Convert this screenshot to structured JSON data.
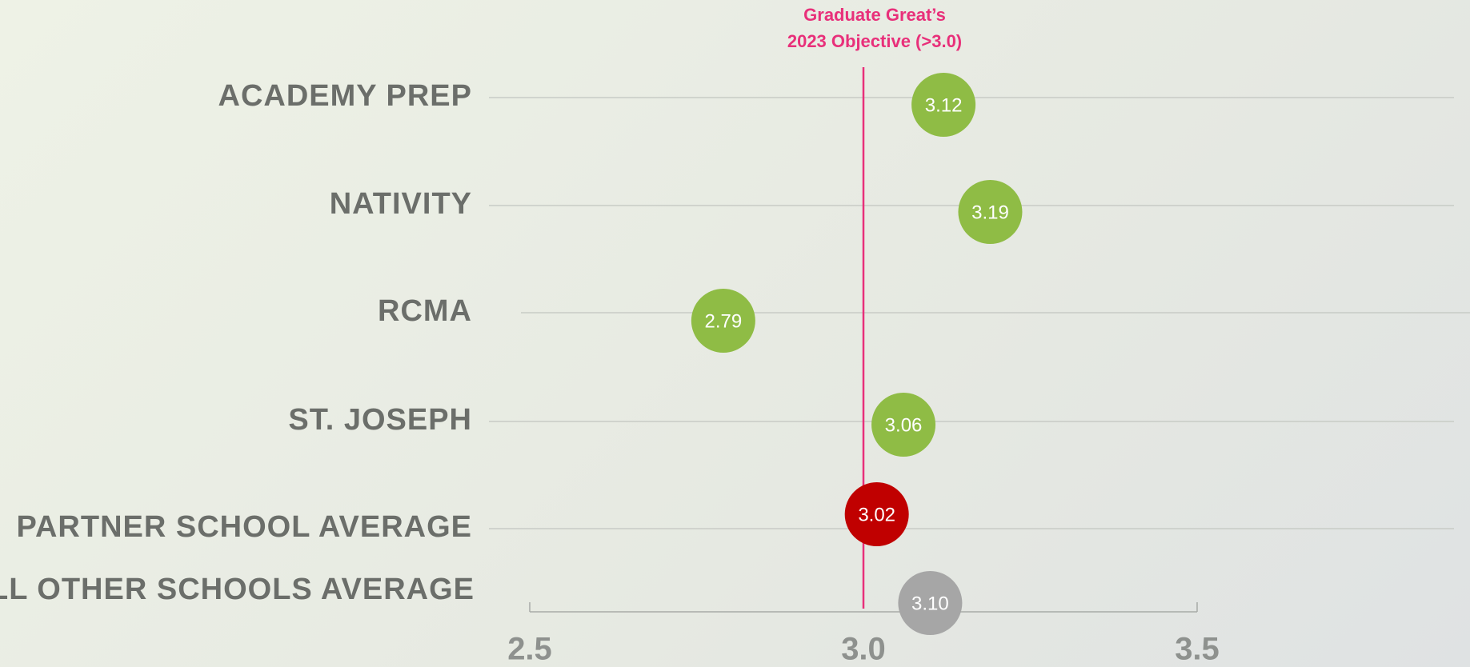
{
  "chart_data": {
    "type": "dot",
    "annotation": [
      "Graduate Great’s",
      "2023 Objective (>3.0)"
    ],
    "target": 3,
    "categories": [
      "ACADEMY PREP",
      "NATIVITY",
      "RCMA",
      "ST. JOSEPH",
      "PARTNER SCHOOL AVERAGE",
      "ALL OTHER SCHOOLS AVERAGE"
    ],
    "values": [
      3.12,
      3.19,
      2.79,
      3.06,
      3.02,
      3.1
    ],
    "value_labels": [
      "3.12",
      "3.19",
      "2.79",
      "3.06",
      "3.02",
      "3.10"
    ],
    "colors": [
      "#8fbc45",
      "#8fbc45",
      "#8fbc45",
      "#8fbc45",
      "#c00000",
      "#a6a6a6"
    ],
    "target_color": "#e8307a",
    "xlim": [
      2.5,
      3.5
    ],
    "xticks": [
      2.5,
      {
        "value": 3,
        "label": "3.0"
      },
      3.5
    ],
    "grid": true
  }
}
